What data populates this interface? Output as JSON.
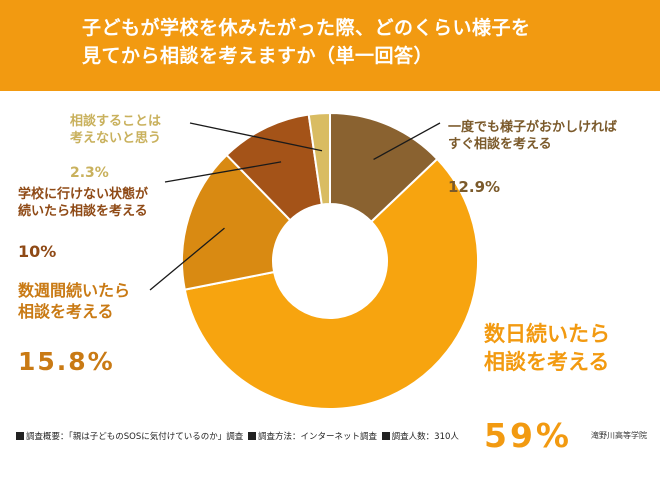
{
  "header": {
    "title": "子どもが学校を休みたがった際、どのくらい様子を\n見てから相談を考えますか（単一回答）"
  },
  "chart_data": {
    "type": "pie",
    "variant": "donut",
    "title": "子どもが学校を休みたがった際、どのくらい様子を見てから相談を考えますか（単一回答）",
    "slices": [
      {
        "label": "一度でも様子がおかしければ\nすぐ相談を考える",
        "value": 12.9,
        "value_label": "12.9%",
        "color": "#8a6230",
        "label_color": "#7b5a2b"
      },
      {
        "label": "数日続いたら\n相談を考える",
        "value": 59,
        "value_label": "59%",
        "color": "#f7a40f",
        "label_color": "#f29a11"
      },
      {
        "label": "数週間続いたら\n相談を考える",
        "value": 15.8,
        "value_label": "15.8%",
        "color": "#d98a12",
        "label_color": "#c97a14"
      },
      {
        "label": "学校に行けない状態が\n続いたら相談を考える",
        "value": 10,
        "value_label": "10%",
        "color": "#a45318",
        "label_color": "#8f4a16"
      },
      {
        "label": "相談することは\n考えないと思う",
        "value": 2.3,
        "value_label": "2.3%",
        "color": "#d9bc62",
        "label_color": "#c9b15d"
      }
    ],
    "start": "12 o'clock",
    "direction": "clockwise"
  },
  "footer": {
    "items": [
      "調査概要：「親は子どものSOSに気付けているのか」調査",
      "調査方法：インターネット調査",
      "調査人数：310人"
    ],
    "source": "滝野川高等学院"
  }
}
